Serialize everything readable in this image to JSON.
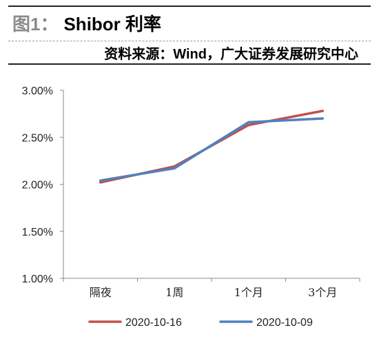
{
  "header": {
    "figure_prefix": "图1：",
    "title": "Shibor 利率",
    "source": "资料来源：Wind，广大证券发展研究中心"
  },
  "chart_data": {
    "type": "line",
    "title": "",
    "xlabel": "",
    "ylabel": "",
    "categories": [
      "隔夜",
      "1周",
      "1个月",
      "3个月"
    ],
    "y_ticks": [
      "1.00%",
      "1.50%",
      "2.00%",
      "2.50%",
      "3.00%"
    ],
    "ylim": [
      1.0,
      3.0
    ],
    "grid": false,
    "legend_position": "bottom",
    "series": [
      {
        "name": "2020-10-16",
        "color": "#c0504d",
        "values": [
          2.02,
          2.19,
          2.63,
          2.78
        ]
      },
      {
        "name": "2020-10-09",
        "color": "#4f81bd",
        "values": [
          2.04,
          2.17,
          2.66,
          2.7
        ]
      }
    ]
  }
}
